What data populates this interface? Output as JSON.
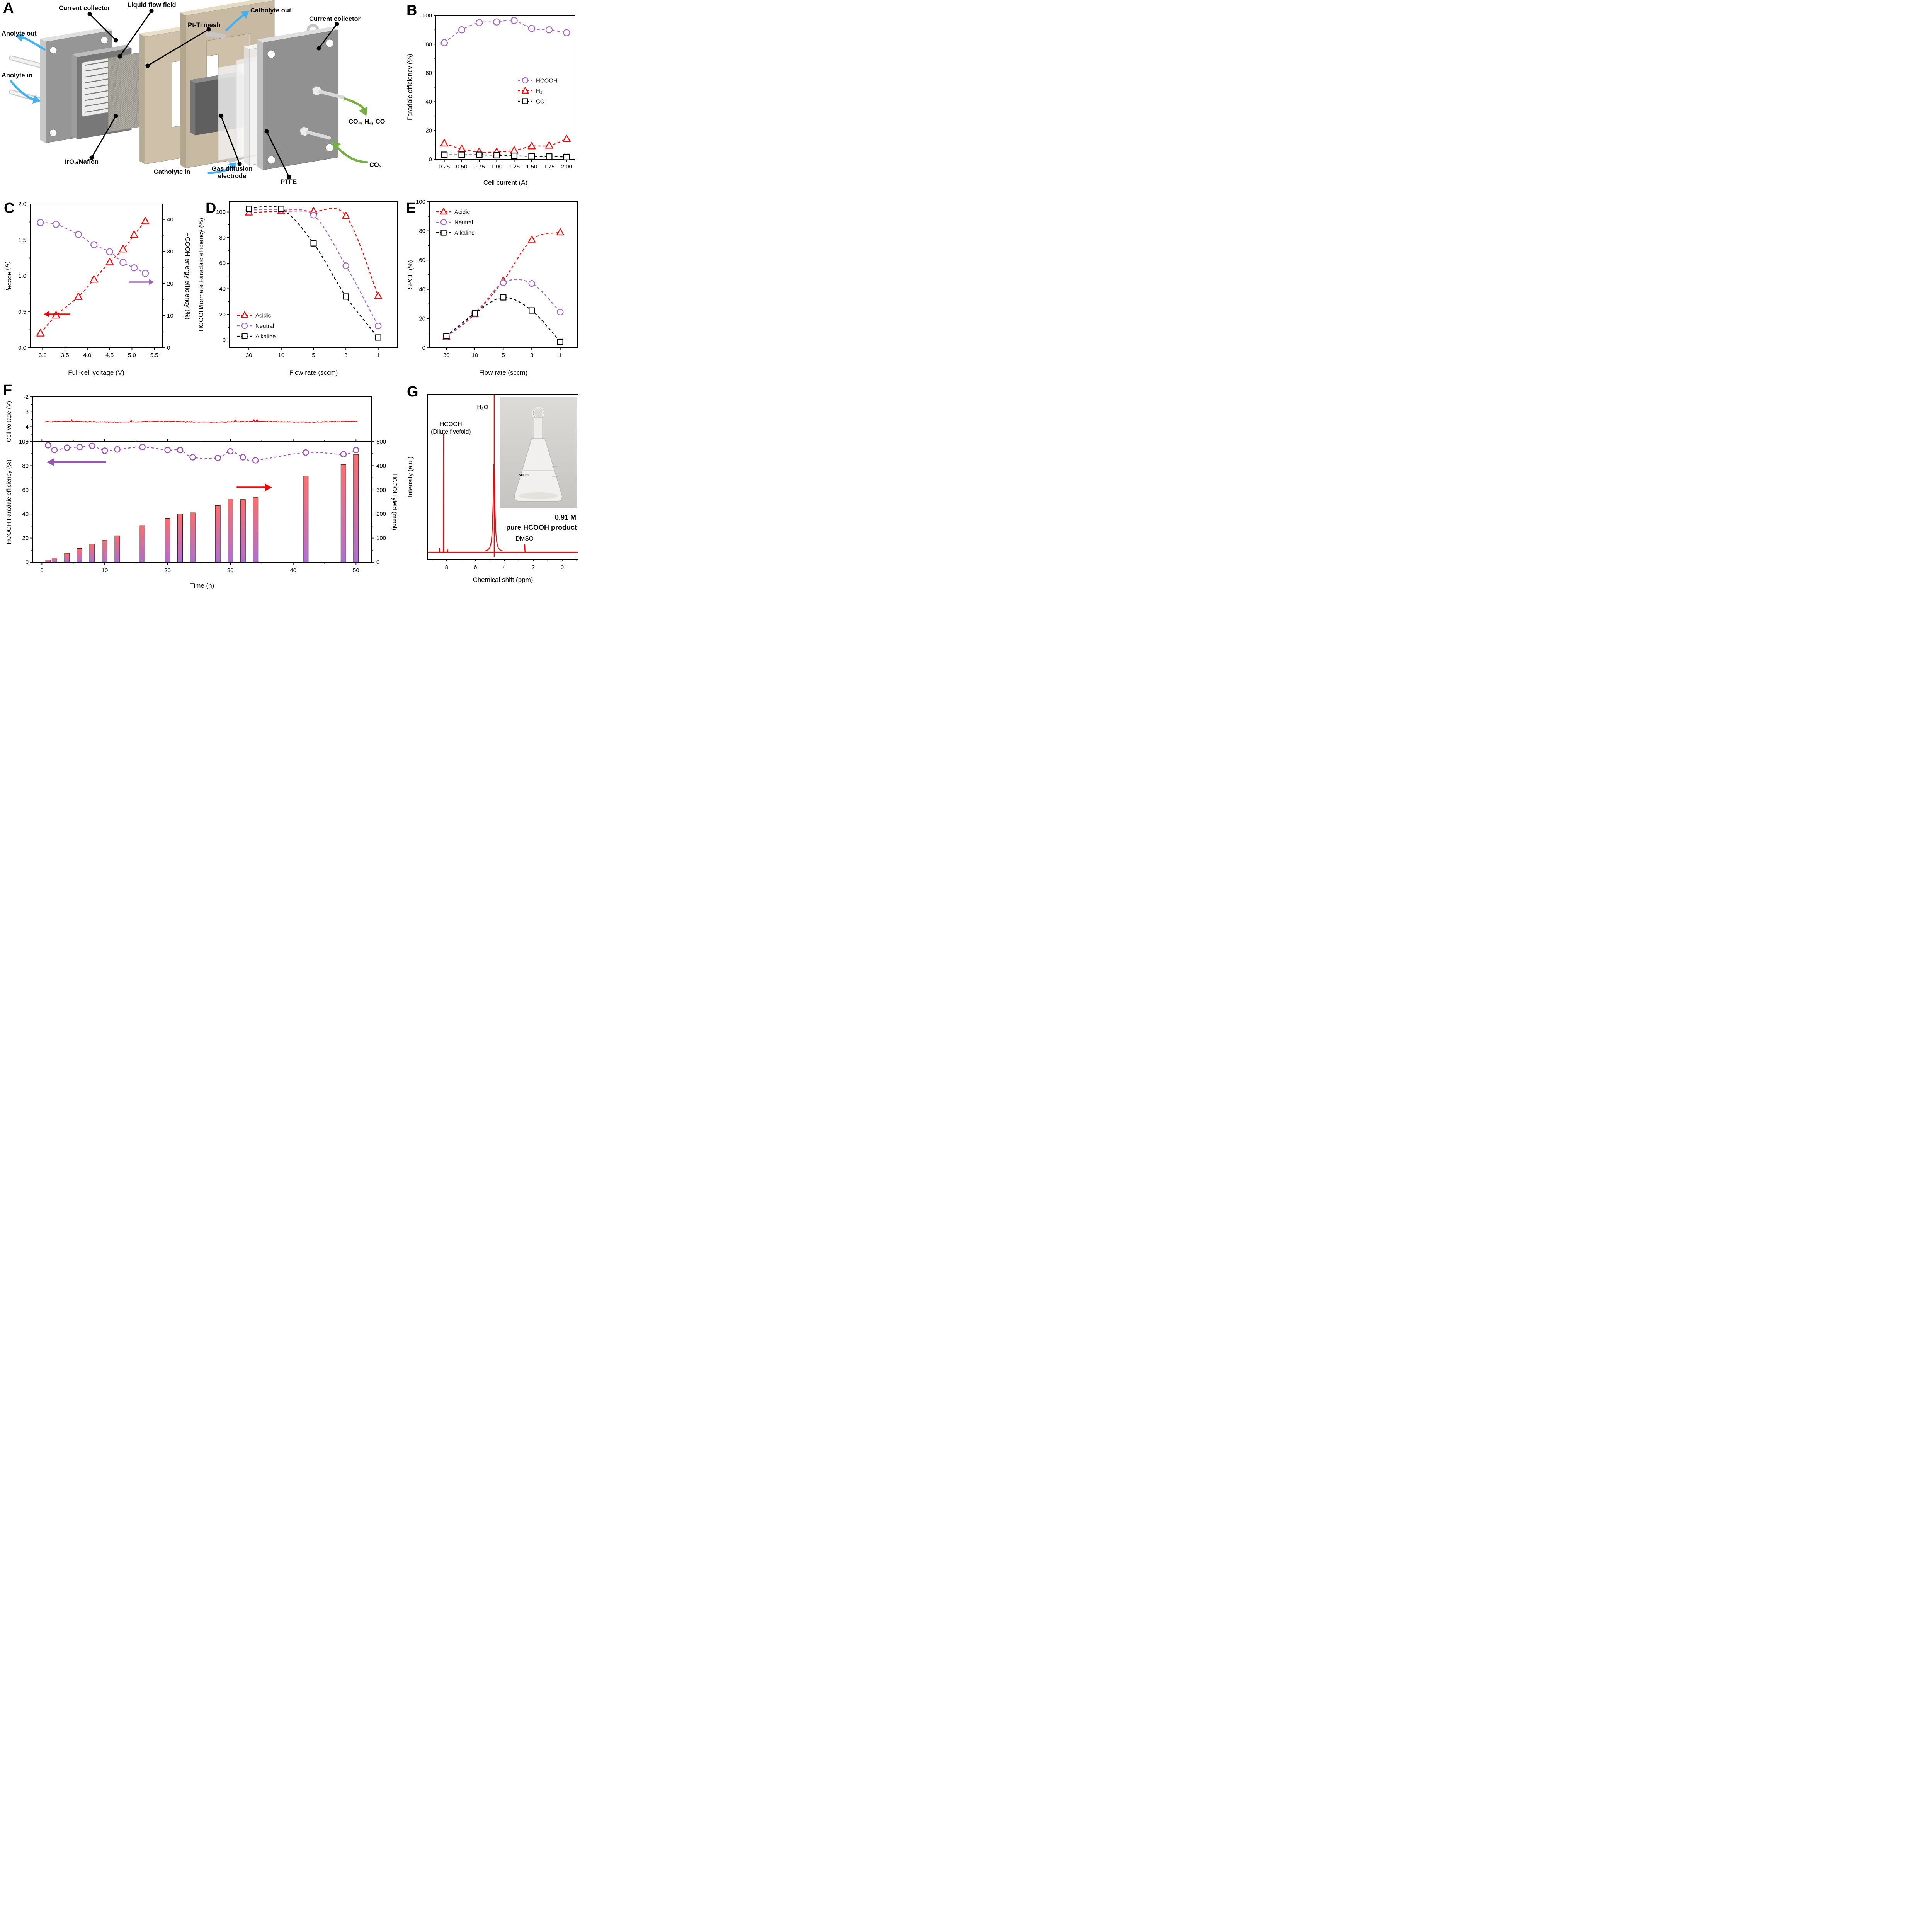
{
  "panels": {
    "a": "A",
    "b": "B",
    "c": "C",
    "d": "D",
    "e": "E",
    "f": "F",
    "g": "G"
  },
  "panel_a": {
    "labels": {
      "current_collector_left": "Current collector",
      "liquid_flow_field": "Liquid flow field",
      "pt_ti_mesh": "Pt-Ti mesh",
      "anolyte_out": "Anolyte out",
      "anolyte_in": "Anolyte in",
      "iro2_nafion": "IrO₂/Nafion",
      "catholyte_in": "Catholyte in",
      "catholyte_out": "Catholyte out",
      "gas_diffusion_electrode": "Gas diffusion\nelectrode",
      "ptfe": "PTFE",
      "current_collector_right": "Current collector",
      "gas_out": "CO₂, H₂, CO",
      "gas_in": "CO₂"
    }
  },
  "chart_data": [
    {
      "id": "B",
      "type": "scatter",
      "xlabel": "Cell current (A)",
      "ylabel": "Faradaic efficiency (%)",
      "x": [
        0.25,
        0.5,
        0.75,
        1.0,
        1.25,
        1.5,
        1.75,
        2.0
      ],
      "xtick_labels": [
        "0.25",
        "0.50",
        "0.75",
        "1.00",
        "1.25",
        "1.50",
        "1.75",
        "2.00"
      ],
      "xlim": [
        0.13,
        2.12
      ],
      "ylim": [
        0,
        100
      ],
      "yticks": [
        0,
        20,
        40,
        60,
        80,
        100
      ],
      "series": [
        {
          "name": "HCOOH",
          "marker": "circle",
          "color": "#a365c5",
          "values": [
            81,
            90,
            95,
            95.5,
            96.5,
            91,
            90,
            88
          ]
        },
        {
          "name": "H₂",
          "marker": "triangle",
          "color": "#ff0000",
          "values": [
            11,
            7,
            5,
            5,
            6,
            9,
            9.5,
            14
          ]
        },
        {
          "name": "CO",
          "marker": "square",
          "color": "#000000",
          "values": [
            3,
            3,
            3,
            2.8,
            2.3,
            2,
            1.8,
            1.5
          ]
        }
      ],
      "legend_pos": "middle-right"
    },
    {
      "id": "C",
      "type": "dual-axis-scatter",
      "xlabel": "Full-cell voltage (V)",
      "ylabel_left": {
        "italic": "i",
        "sub": "HCOOH",
        "rest": " (A)"
      },
      "ylabel_right": "HCOOH energy efficiency (%)",
      "x": [
        2.95,
        3.3,
        3.8,
        4.15,
        4.5,
        4.8,
        5.05,
        5.3
      ],
      "xlim": [
        2.72,
        5.68
      ],
      "xticks": [
        3.0,
        3.5,
        4.0,
        4.5,
        5.0,
        5.5
      ],
      "xtick_labels": [
        "3.0",
        "3.5",
        "4.0",
        "4.5",
        "5.0",
        "5.5"
      ],
      "ylim_left": [
        0,
        2.0
      ],
      "yticks_left": [
        0,
        0.5,
        1.0,
        1.5,
        2.0
      ],
      "ytick_labels_left": [
        "0.0",
        "0.5",
        "1.0",
        "1.5",
        "2.0"
      ],
      "ylim_right": [
        0,
        44.8
      ],
      "yticks_right": [
        0,
        10,
        20,
        30,
        40
      ],
      "series": [
        {
          "name": "i_HCOOH",
          "axis": "left",
          "marker": "triangle",
          "color": "#ff0000",
          "values": [
            0.2,
            0.45,
            0.71,
            0.95,
            1.19,
            1.37,
            1.57,
            1.76
          ]
        },
        {
          "name": "HCOOH energy efficiency",
          "axis": "right",
          "marker": "circle",
          "color": "#a365c5",
          "values": [
            39.0,
            38.5,
            35.3,
            32.1,
            29.9,
            26.6,
            24.9,
            23.2
          ]
        }
      ]
    },
    {
      "id": "D",
      "type": "scatter",
      "xlabel": "Flow rate (sccm)",
      "ylabel": "HCOOH/formate Faradaic efficiency (%)",
      "categories": [
        "30",
        "10",
        "5",
        "3",
        "1"
      ],
      "ylim": [
        -6,
        108
      ],
      "yticks": [
        0,
        20,
        40,
        60,
        80,
        100
      ],
      "series": [
        {
          "name": "Acidic",
          "marker": "triangle",
          "color": "#ff0000",
          "values": [
            99.5,
            100.5,
            100.5,
            97,
            34.5
          ],
          "err": [
            1,
            1,
            3,
            2,
            1.5
          ]
        },
        {
          "name": "Neutral",
          "marker": "circle",
          "color": "#a365c5",
          "values": [
            101.5,
            101.5,
            97.5,
            58,
            11
          ],
          "err": [
            2,
            1.5,
            2,
            1.5,
            2
          ]
        },
        {
          "name": "Alkaline",
          "marker": "square",
          "color": "#000000",
          "values": [
            102.5,
            102.5,
            75.5,
            34,
            2
          ],
          "err": [
            2,
            2,
            2,
            1.5,
            1.5
          ]
        }
      ],
      "legend_pos": "bottom-left"
    },
    {
      "id": "E",
      "type": "scatter",
      "xlabel": "Flow rate (sccm)",
      "ylabel": "SPCE (%)",
      "categories": [
        "30",
        "10",
        "5",
        "3",
        "1"
      ],
      "ylim": [
        0,
        100
      ],
      "yticks": [
        0,
        20,
        40,
        60,
        80,
        100
      ],
      "series": [
        {
          "name": "Acidic",
          "marker": "triangle",
          "color": "#ff0000",
          "values": [
            7.5,
            23,
            46,
            74,
            79
          ],
          "err": [
            1,
            1,
            2,
            2,
            2
          ]
        },
        {
          "name": "Neutral",
          "marker": "circle",
          "color": "#a365c5",
          "values": [
            7.5,
            23.5,
            44.5,
            44,
            24.5
          ],
          "err": [
            1,
            1,
            2,
            1.5,
            1.5
          ]
        },
        {
          "name": "Alkaline",
          "marker": "square",
          "color": "#000000",
          "values": [
            8,
            23.5,
            34.5,
            25.5,
            4
          ],
          "err": [
            1.5,
            1.5,
            1.5,
            1.5,
            1
          ]
        }
      ],
      "legend_pos": "top-left"
    },
    {
      "id": "F",
      "type": "stability",
      "xlabel": "Time (h)",
      "xlim": [
        -1.5,
        52.5
      ],
      "xticks": [
        0,
        10,
        20,
        30,
        40,
        50
      ],
      "top": {
        "ylabel": "Cell voltage (V)",
        "ylim": [
          -5,
          -2
        ],
        "yticks": [
          -2,
          -3,
          -4,
          -5
        ],
        "cell_voltage_avg": -3.67,
        "line_color": "#ff0000"
      },
      "bottom": {
        "ylabel_left": "HCOOH Faradaic efficiency (%)",
        "ylabel_right": "HCOOH yield (mmol)",
        "ylim_left": [
          0,
          100
        ],
        "yticks_left": [
          0,
          20,
          40,
          60,
          80,
          100
        ],
        "ylim_right": [
          0,
          500
        ],
        "yticks_right": [
          0,
          100,
          200,
          300,
          400,
          500
        ],
        "time": [
          1,
          2,
          4,
          6,
          8,
          10,
          12,
          16,
          20,
          22,
          24,
          28,
          30,
          32,
          34,
          42,
          48,
          50
        ],
        "faradaic_efficiency": [
          97,
          93,
          95,
          95.5,
          96.5,
          92.5,
          93.5,
          95.5,
          93,
          93,
          87,
          86.5,
          92,
          87,
          84.5,
          91,
          89.5,
          93
        ],
        "hcooh_yield_mmol": [
          10,
          18,
          37,
          57,
          75,
          90,
          110,
          152,
          182,
          200,
          205,
          235,
          262,
          260,
          268,
          357,
          405,
          447
        ],
        "fe_color": "#9b51b5",
        "bar_top_color": "#fc6e6d",
        "bar_bottom_color": "#ae70d0"
      }
    },
    {
      "id": "G",
      "type": "nmr",
      "xlabel": "Chemical shift (ppm)",
      "ylabel": "Intensity (a.u.)",
      "xlim": [
        9.3,
        -1.1
      ],
      "xticks": [
        8,
        6,
        4,
        2,
        0
      ],
      "line_color": "#ff0000",
      "peaks": [
        {
          "ppm": 8.2,
          "rel_height": 0.75,
          "label": "HCOOH\n(Dilute fivefold)"
        },
        {
          "ppm": 4.7,
          "rel_height": 1.0,
          "broad_height": 0.56,
          "label": "H₂O"
        },
        {
          "ppm": 2.6,
          "rel_height": 0.05,
          "label": "DMSO"
        }
      ],
      "annotation": {
        "line1": "0.91 M",
        "line2": "pure HCOOH product",
        "color": "#ff0000"
      },
      "inset_flask_text": "500ml"
    }
  ]
}
